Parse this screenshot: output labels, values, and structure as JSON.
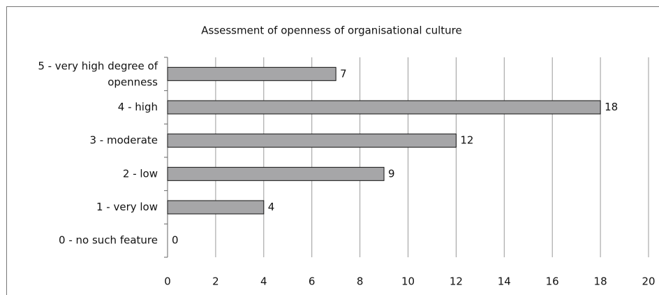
{
  "chart_data": {
    "type": "bar",
    "orientation": "horizontal",
    "title": "Assessment of openness of organisational culture",
    "categories": [
      "5 - very high degree of openness",
      "4 - high",
      "3 - moderate",
      "2 - low",
      "1 - very low",
      "0 - no such feature"
    ],
    "values": [
      7,
      18,
      12,
      9,
      4,
      0
    ],
    "color": "#a6a6a8",
    "xlim": [
      0,
      20
    ],
    "xticks": [
      0,
      2,
      4,
      6,
      8,
      10,
      12,
      14,
      16,
      18,
      20
    ],
    "grid": true
  }
}
